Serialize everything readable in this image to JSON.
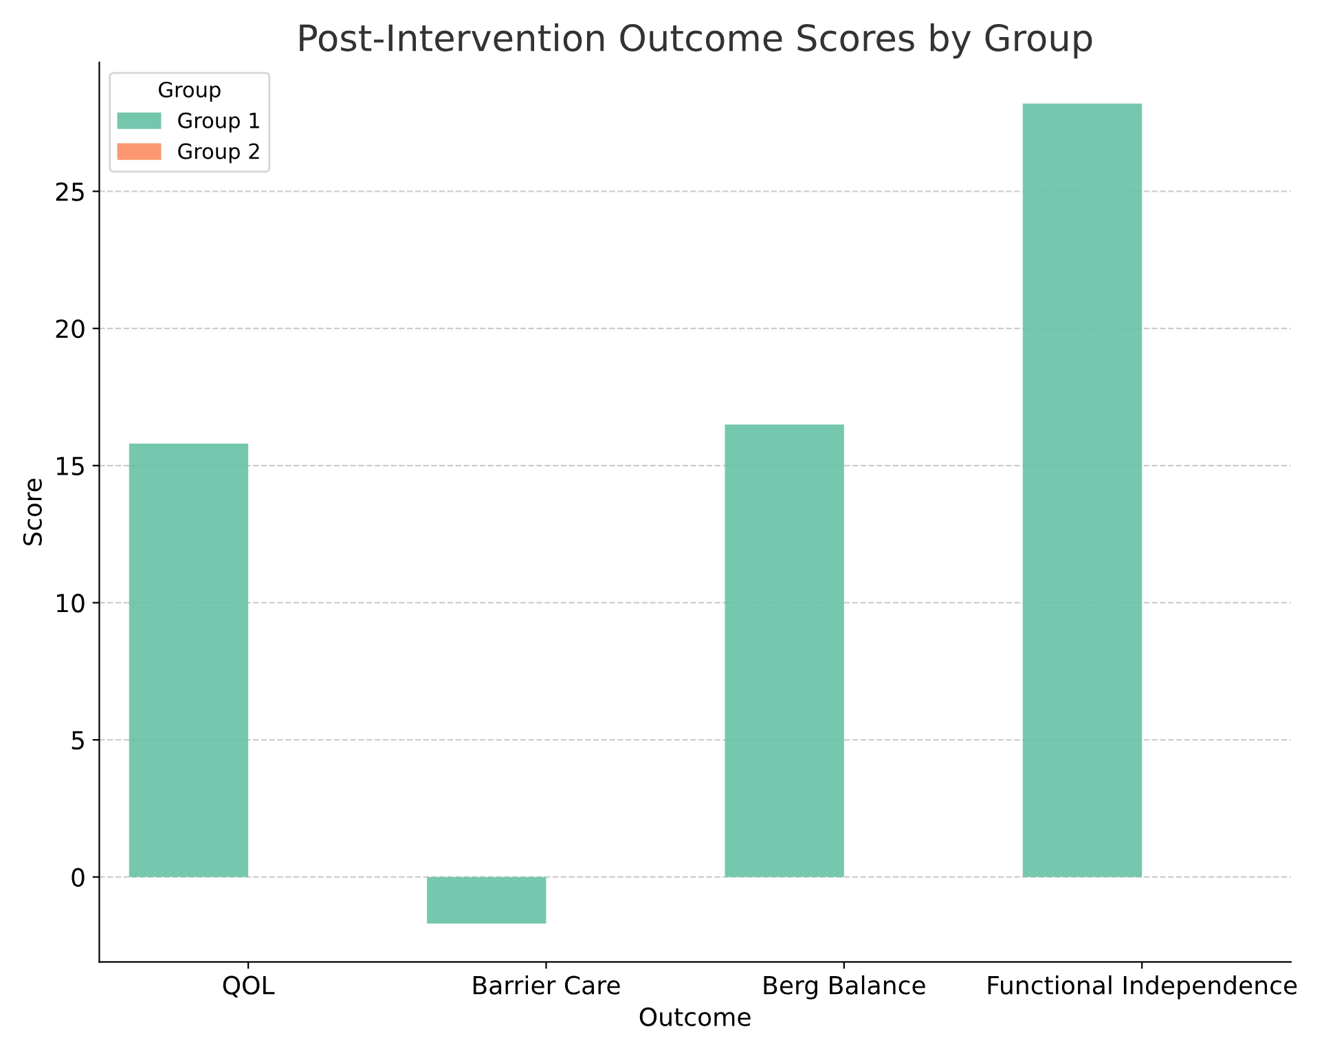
{
  "chart_data": {
    "type": "bar",
    "title": "Post-Intervention Outcome Scores by Group",
    "xlabel": "Outcome",
    "ylabel": "Score",
    "legend_title": "Group",
    "categories": [
      "QOL",
      "Barrier Care",
      "Berg Balance",
      "Functional Independence"
    ],
    "series": [
      {
        "name": "Group 1",
        "color": "#66c2a5",
        "values": [
          15.8,
          -1.7,
          16.5,
          28.2
        ]
      },
      {
        "name": "Group 2",
        "color": "#fc8d62",
        "values": [
          null,
          null,
          null,
          null
        ]
      }
    ],
    "ylim": [
      -3.1,
      29.7
    ],
    "yticks": [
      0,
      5,
      10,
      15,
      20,
      25
    ],
    "grid": "y",
    "legend": "top left"
  }
}
